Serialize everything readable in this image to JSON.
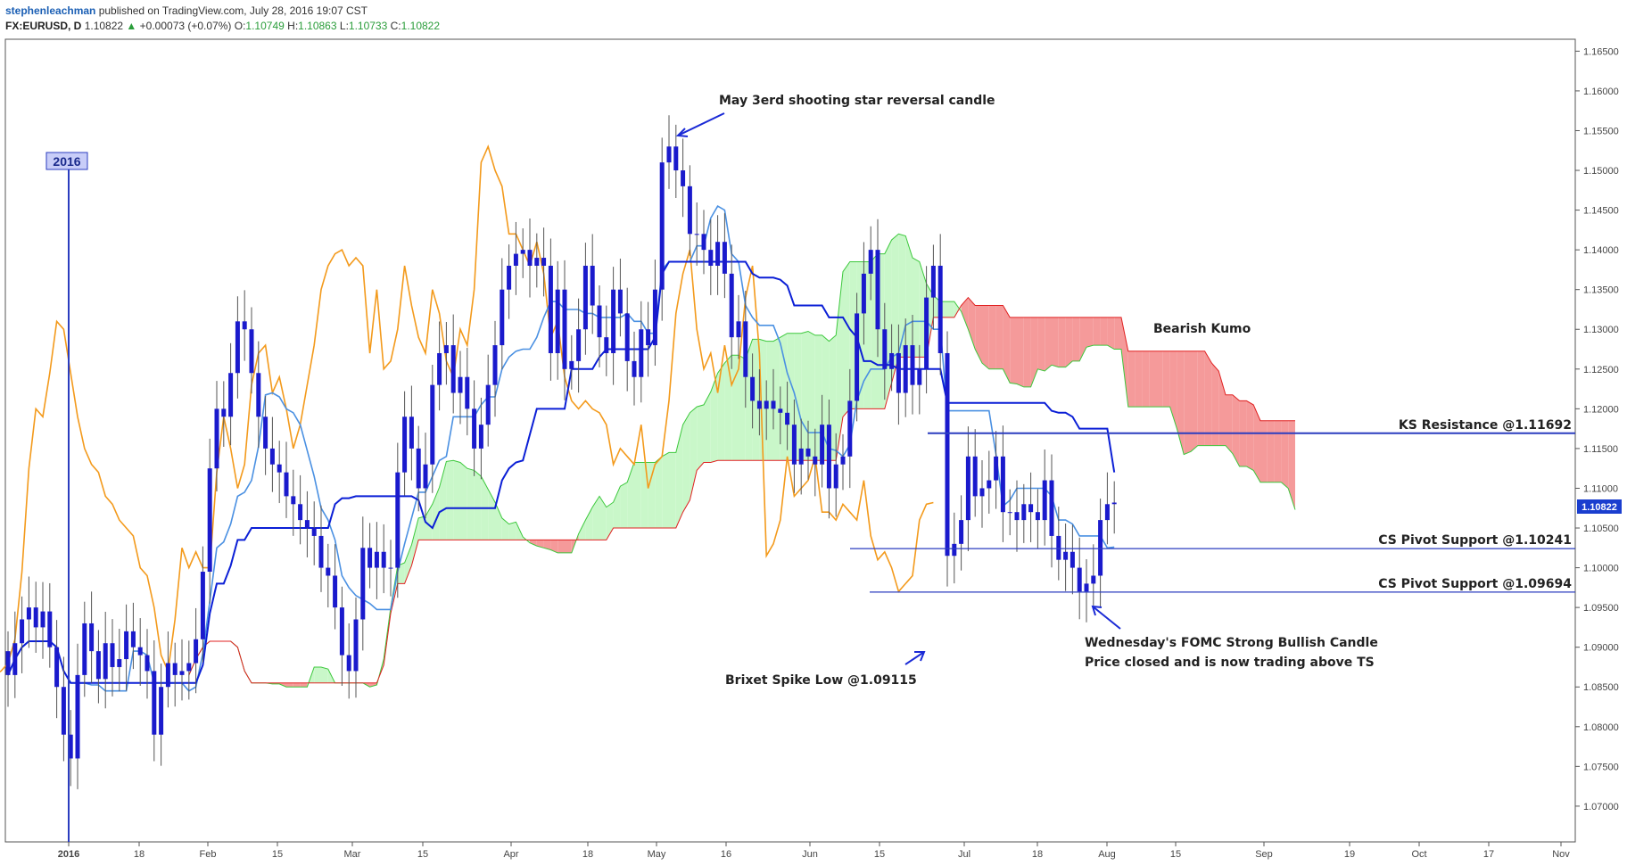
{
  "header": {
    "author": "stephenleachman",
    "published": " published on TradingView.com, July 28, 2016 19:07 CST",
    "symbol": "FX:EURUSD, D",
    "last": "1.10822",
    "change_arrow": "▲",
    "change": "+0.00073 (+0.07%)",
    "o_label": "O:",
    "o": "1.10749",
    "h_label": "H:",
    "h": "1.10863",
    "l_label": "L:",
    "l": "1.10733",
    "c_label": "C:",
    "c": "1.10822"
  },
  "colors": {
    "candle": "#1a1acc",
    "tenkan": "#4a90e2",
    "kijun": "#0b1fd6",
    "chikou": "#f39a1c",
    "kumo_bull": "#c9f7c9",
    "kumo_bear": "#f59a9a",
    "span_a": "#3cc83c",
    "span_b": "#e02020",
    "level_line": "#2b3dbf",
    "price_tag": "#1a3ecf"
  },
  "chart_data": {
    "type": "candlestick",
    "title": "FX:EURUSD, D",
    "ylim": [
      1.0655,
      1.1665
    ],
    "y_ticks": [
      "1.16500",
      "1.16000",
      "1.15500",
      "1.15000",
      "1.14500",
      "1.14000",
      "1.13500",
      "1.13000",
      "1.12500",
      "1.12000",
      "1.11500",
      "1.11000",
      "1.10500",
      "1.10000",
      "1.09500",
      "1.09000",
      "1.08500",
      "1.08000",
      "1.07500",
      "1.07000"
    ],
    "x_ticks": [
      "2016",
      "18",
      "Feb",
      "15",
      "Mar",
      "15",
      "Apr",
      "18",
      "May",
      "16",
      "Jun",
      "15",
      "Jul",
      "18",
      "Aug",
      "15",
      "Sep",
      "19",
      "Oct",
      "17",
      "Nov"
    ],
    "last_price_label": "1.10822",
    "year_marker": "2016",
    "closes": [
      1.0865,
      1.0905,
      1.0935,
      1.095,
      1.0925,
      1.0945,
      1.09,
      1.085,
      1.079,
      1.076,
      1.0865,
      1.093,
      1.0895,
      1.086,
      1.0905,
      1.0875,
      1.0885,
      1.092,
      1.09,
      1.089,
      1.087,
      1.079,
      1.085,
      1.088,
      1.0865,
      1.087,
      1.088,
      1.091,
      1.0995,
      1.1125,
      1.12,
      1.119,
      1.1245,
      1.131,
      1.13,
      1.1245,
      1.119,
      1.115,
      1.113,
      1.112,
      1.109,
      1.108,
      1.106,
      1.105,
      1.104,
      1.1,
      1.099,
      1.095,
      1.089,
      1.087,
      1.0935,
      1.1025,
      1.1,
      1.102,
      1.1,
      1.1,
      1.112,
      1.119,
      1.115,
      1.11,
      1.113,
      1.123,
      1.127,
      1.128,
      1.122,
      1.124,
      1.12,
      1.115,
      1.118,
      1.123,
      1.128,
      1.135,
      1.138,
      1.1395,
      1.14,
      1.138,
      1.139,
      1.138,
      1.127,
      1.135,
      1.125,
      1.126,
      1.13,
      1.138,
      1.133,
      1.129,
      1.127,
      1.135,
      1.132,
      1.126,
      1.124,
      1.13,
      1.128,
      1.135,
      1.151,
      1.153,
      1.15,
      1.148,
      1.142,
      1.142,
      1.14,
      1.138,
      1.141,
      1.137,
      1.129,
      1.131,
      1.124,
      1.121,
      1.12,
      1.121,
      1.12,
      1.1195,
      1.118,
      1.113,
      1.115,
      1.114,
      1.113,
      1.118,
      1.11,
      1.113,
      1.114,
      1.121,
      1.132,
      1.137,
      1.14,
      1.13,
      1.125,
      1.127,
      1.122,
      1.128,
      1.123,
      1.125,
      1.134,
      1.138,
      1.127,
      1.1015,
      1.103,
      1.106,
      1.114,
      1.109,
      1.11,
      1.111,
      1.114,
      1.107,
      1.107,
      1.106,
      1.108,
      1.107,
      1.106,
      1.111,
      1.104,
      1.101,
      1.102,
      1.1,
      1.097,
      1.098,
      1.099,
      1.106,
      1.108,
      1.1082
    ],
    "levels": [
      {
        "label": "KS Resistance @1.11692",
        "value": 1.11692
      },
      {
        "label": "CS Pivot Support @1.10241",
        "value": 1.10241
      },
      {
        "label": "CS Pivot Support @1.09694",
        "value": 1.09694
      }
    ],
    "annotations": [
      {
        "id": "shooting-star",
        "text": "May 3erd shooting star reversal candle"
      },
      {
        "id": "bearish-kumo",
        "text": "Bearish Kumo"
      },
      {
        "id": "brexit-low",
        "text": "Brixet Spike Low @1.09115"
      },
      {
        "id": "fomc-1",
        "text": "Wednesday's FOMC Strong Bullish Candle"
      },
      {
        "id": "fomc-2",
        "text": "Price closed and is now trading above TS"
      }
    ]
  }
}
